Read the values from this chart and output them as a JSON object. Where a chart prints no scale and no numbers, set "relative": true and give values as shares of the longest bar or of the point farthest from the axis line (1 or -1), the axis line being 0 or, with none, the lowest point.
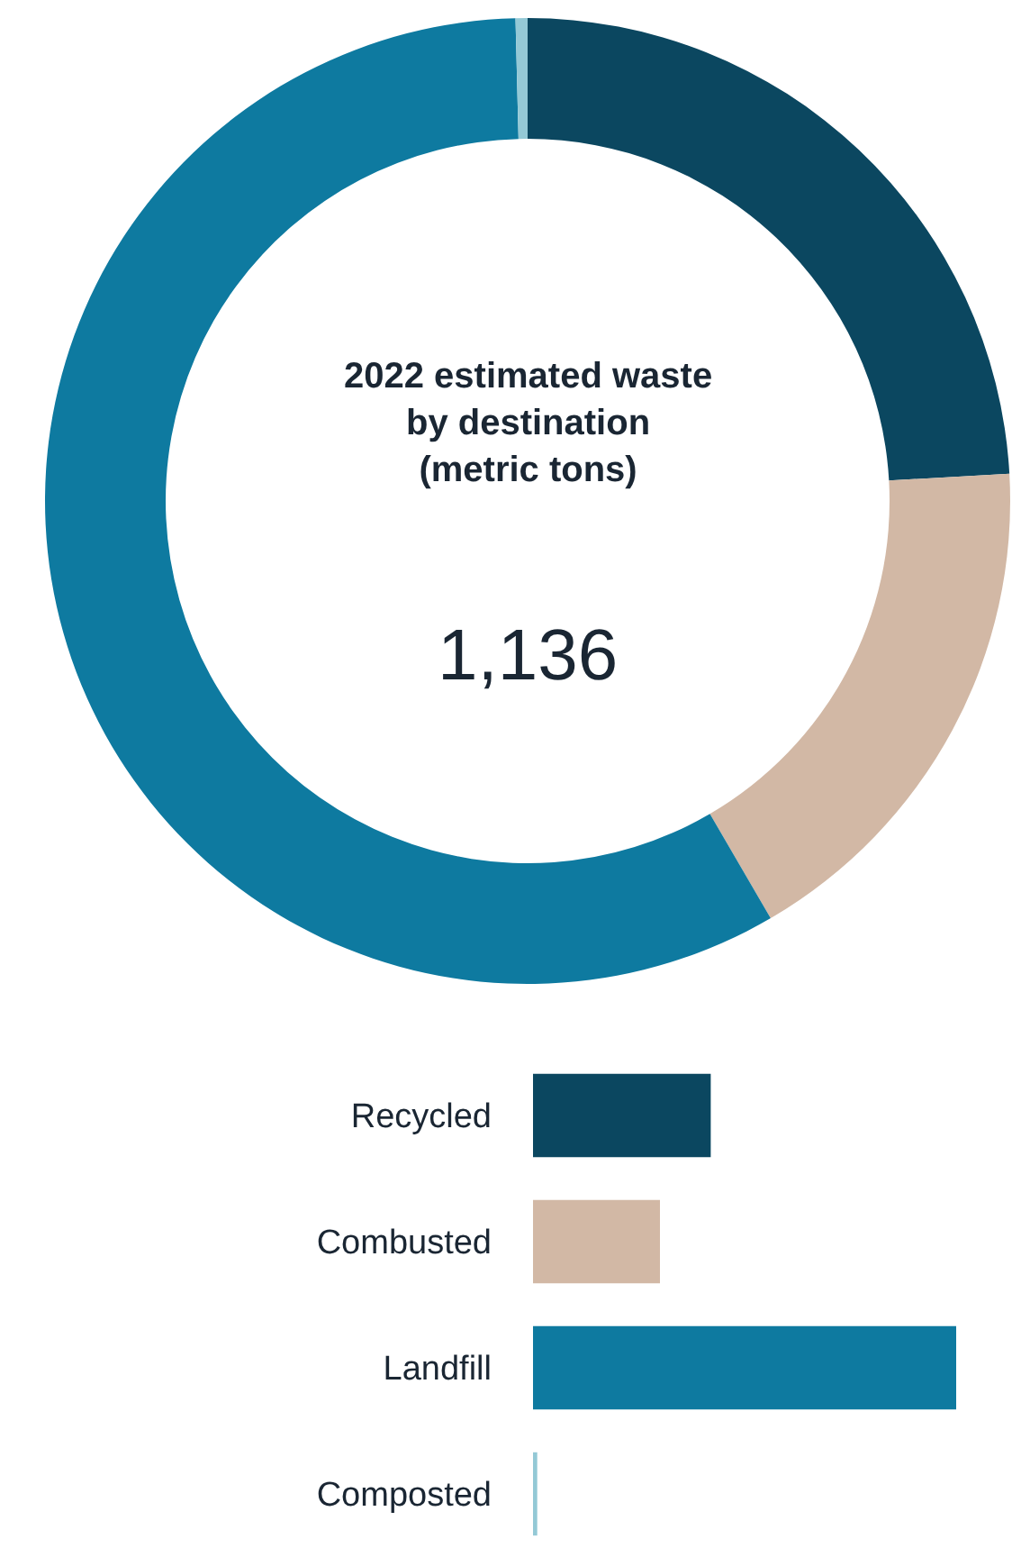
{
  "chart_data": [
    {
      "type": "donut",
      "title": "2022 estimated waste by destination (metric tons)",
      "annotations": [
        "1,136"
      ],
      "values": [
        24.1,
        17.5,
        58.0,
        0.4
      ],
      "colors": [
        "#0b4760",
        "#d2b8a5",
        "#0e7aa0",
        "#94c9d6"
      ]
    },
    {
      "type": "bar",
      "orientation": "horizontal",
      "relative": true,
      "categories": [
        "Recycled",
        "Combusted",
        "Landfill",
        "Composted"
      ],
      "values": [
        0.42,
        0.3,
        1,
        0.01
      ],
      "colors": [
        "#0b4760",
        "#d2b8a5",
        "#0e7aa0",
        "#94c9d6"
      ]
    }
  ]
}
